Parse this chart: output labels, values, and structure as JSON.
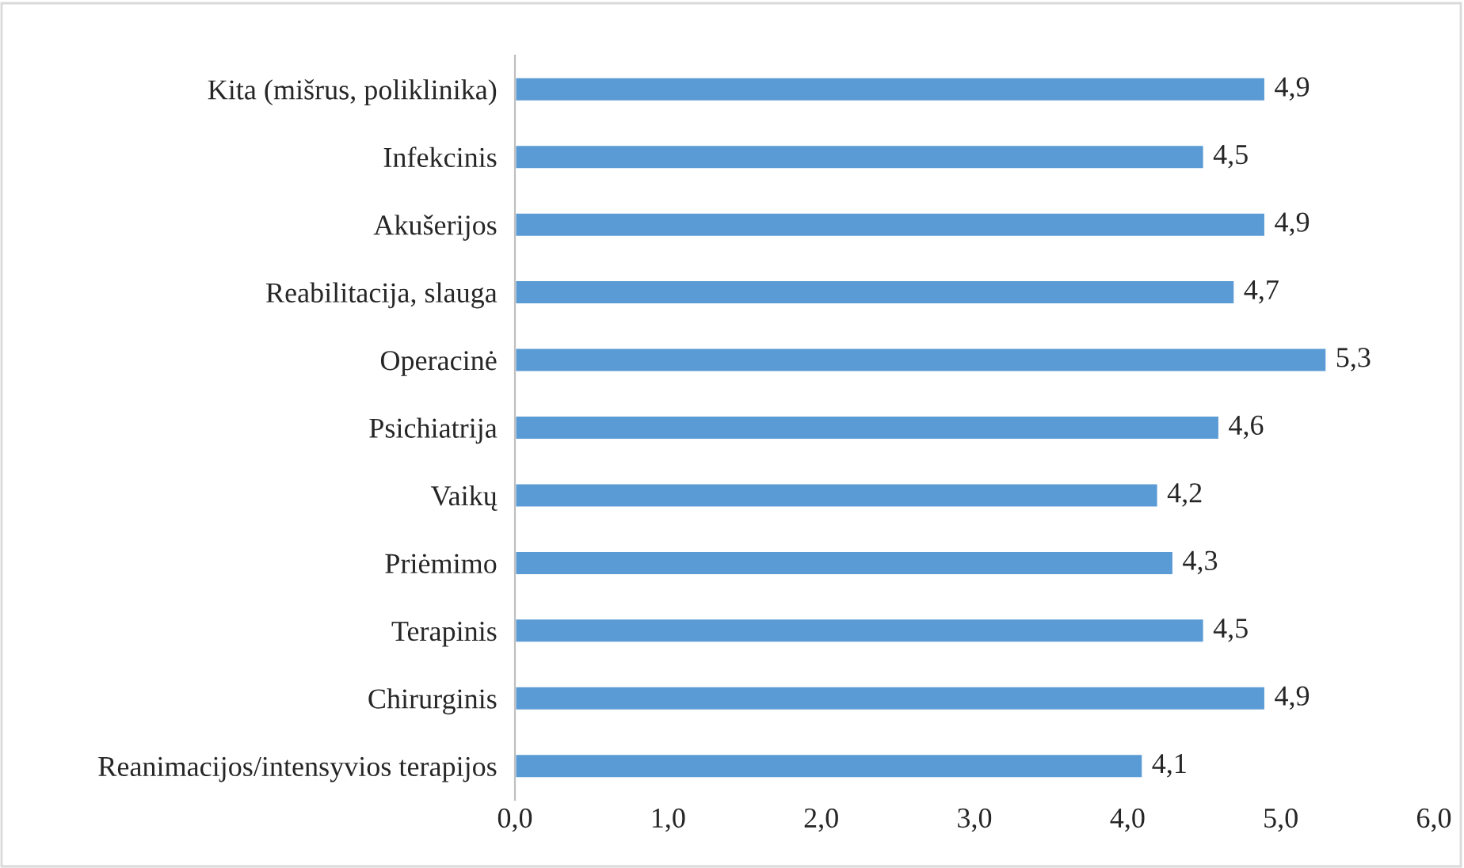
{
  "chart_data": {
    "type": "bar",
    "orientation": "horizontal",
    "categories": [
      "Kita (mišrus, poliklinika)",
      "Infekcinis",
      "Akušerijos",
      "Reabilitacija, slauga",
      "Operacinė",
      "Psichiatrija",
      "Vaikų",
      "Priėmimo",
      "Terapinis",
      "Chirurginis",
      "Reanimacijos/intensyvios terapijos"
    ],
    "values": [
      4.9,
      4.5,
      4.9,
      4.7,
      5.3,
      4.6,
      4.2,
      4.3,
      4.5,
      4.9,
      4.1
    ],
    "value_labels": [
      "4,9",
      "4,5",
      "4,9",
      "4,7",
      "5,3",
      "4,6",
      "4,2",
      "4,3",
      "4,5",
      "4,9",
      "4,1"
    ],
    "color": "#5b9bd5",
    "xlim": [
      0,
      6
    ],
    "xticks": [
      {
        "value": 0,
        "label": "0,0"
      },
      {
        "value": 1,
        "label": "1,0"
      },
      {
        "value": 2,
        "label": "2,0"
      },
      {
        "value": 3,
        "label": "3,0"
      },
      {
        "value": 4,
        "label": "4,0"
      },
      {
        "value": 5,
        "label": "5,0"
      },
      {
        "value": 6,
        "label": "6,0"
      }
    ],
    "grid": false,
    "legend": false
  }
}
